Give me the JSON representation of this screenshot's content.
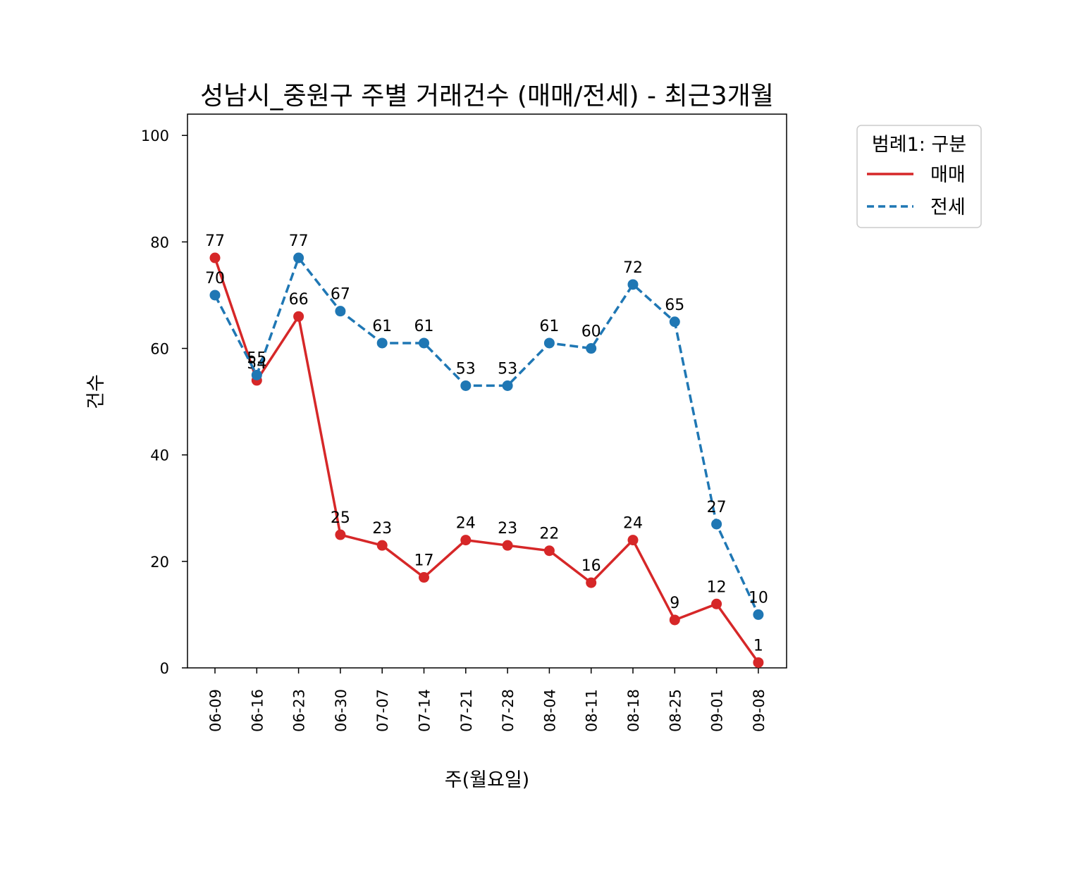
{
  "chart_data": {
    "type": "line",
    "title": "성남시_중원구 주별 거래건수 (매매/전세) - 최근3개월",
    "xlabel": "주(월요일)",
    "ylabel": "건수",
    "categories": [
      "06-09",
      "06-16",
      "06-23",
      "06-30",
      "07-07",
      "07-14",
      "07-21",
      "07-28",
      "08-04",
      "08-11",
      "08-18",
      "08-25",
      "09-01",
      "09-08"
    ],
    "ylim": [
      0,
      104
    ],
    "yticks": [
      0,
      20,
      40,
      60,
      80,
      100
    ],
    "grid": false,
    "legend": {
      "title": "범례1: 구분",
      "placement": "outside-top-right"
    },
    "series": [
      {
        "name": "매매",
        "color": "#d62728",
        "dash": false,
        "values": [
          77,
          54,
          66,
          25,
          23,
          17,
          24,
          23,
          22,
          16,
          24,
          9,
          12,
          1
        ]
      },
      {
        "name": "전세",
        "color": "#1f77b4",
        "dash": true,
        "values": [
          70,
          55,
          77,
          67,
          61,
          61,
          53,
          53,
          61,
          60,
          72,
          65,
          27,
          10
        ]
      }
    ]
  }
}
